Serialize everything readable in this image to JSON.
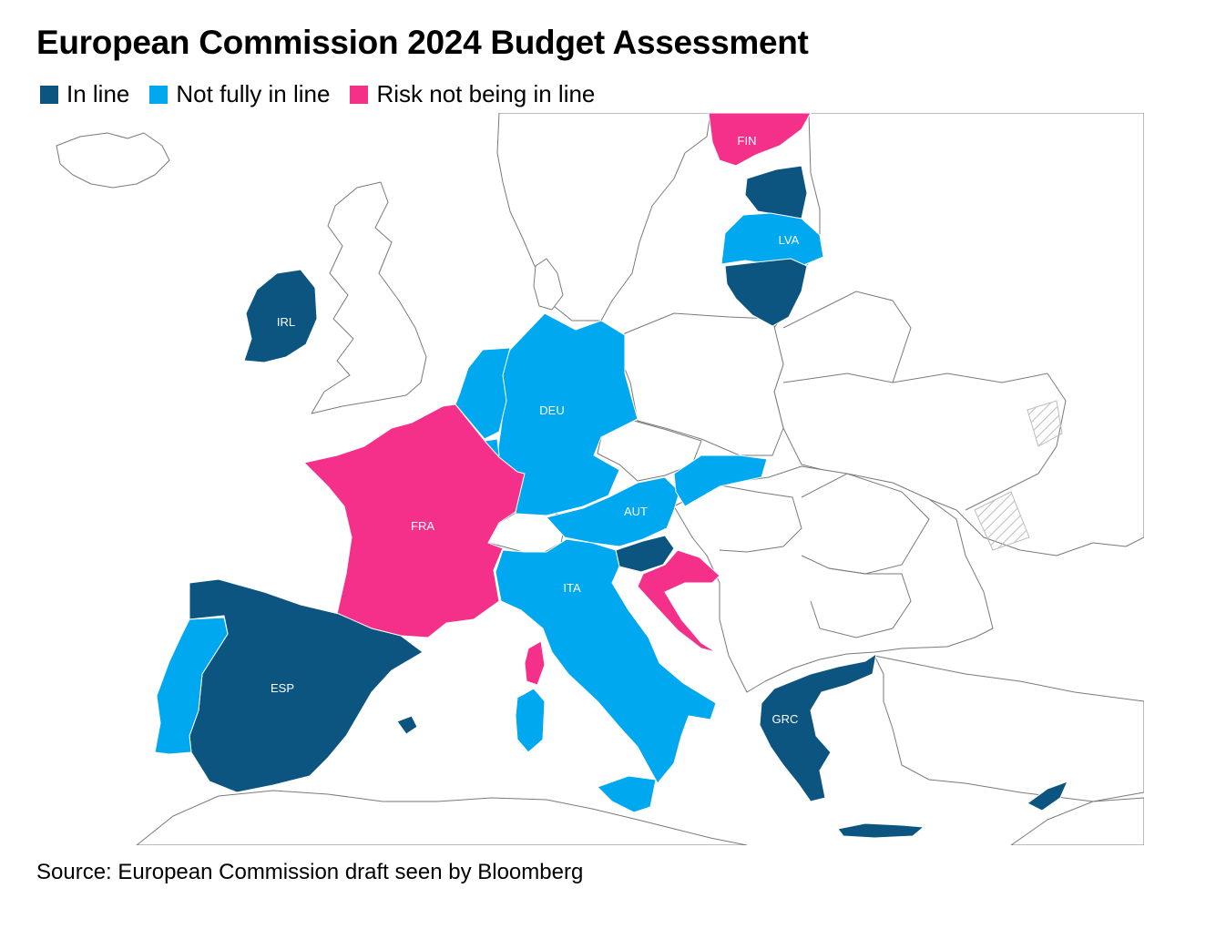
{
  "title": "European Commission 2024 Budget Assessment",
  "legend": [
    {
      "label": "In line",
      "color": "#0b5580"
    },
    {
      "label": "Not fully in line",
      "color": "#00a8f0"
    },
    {
      "label": "Risk not being in line",
      "color": "#f5308a"
    }
  ],
  "countries": {
    "fin": {
      "label": "FIN",
      "status": "Risk not being in line"
    },
    "lva": {
      "label": "LVA",
      "status": "Not fully in line"
    },
    "irl": {
      "label": "IRL",
      "status": "In line"
    },
    "deu": {
      "label": "DEU",
      "status": "Not fully in line"
    },
    "aut": {
      "label": "AUT",
      "status": "Not fully in line"
    },
    "fra": {
      "label": "FRA",
      "status": "Risk not being in line"
    },
    "ita": {
      "label": "ITA",
      "status": "Not fully in line"
    },
    "esp": {
      "label": "ESP",
      "status": "In line"
    },
    "grc": {
      "label": "GRC",
      "status": "In line"
    }
  },
  "source": "Source: European Commission draft seen by Bloomberg"
}
